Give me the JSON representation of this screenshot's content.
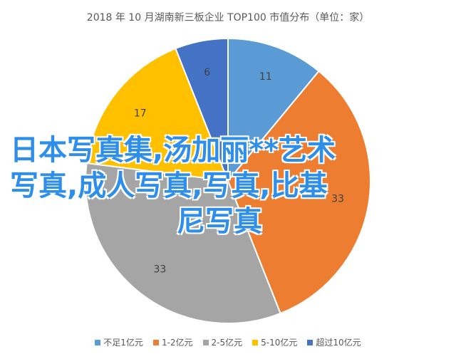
{
  "chart_data": {
    "type": "pie",
    "title": "2018 年 10 月湖南新三板企业 TOP100 市值分布（单位：家）",
    "categories": [
      "不足1亿元",
      "1-2亿元",
      "2-5亿元",
      "5-10亿元",
      "超过10亿元"
    ],
    "values": [
      11,
      33,
      33,
      17,
      6
    ],
    "colors": [
      "#5b9bd5",
      "#ed7d31",
      "#a5a5a5",
      "#ffc000",
      "#4472c4"
    ],
    "legend_position": "bottom"
  },
  "overlay_text": {
    "line1": "日本写真集,汤加丽**艺术",
    "line2": "写真,成人写真,写真,比基",
    "line3": "尼写真"
  }
}
